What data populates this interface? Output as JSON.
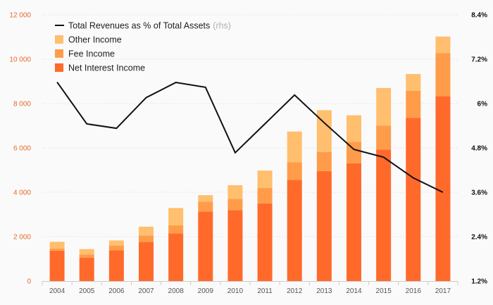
{
  "chart_data": {
    "type": "bar",
    "stacked": true,
    "title": "",
    "xlabel": "",
    "ylabel": "",
    "categories": [
      "2004",
      "2005",
      "2006",
      "2007",
      "2008",
      "2009",
      "2010",
      "2011",
      "2012",
      "2013",
      "2014",
      "2015",
      "2016",
      "2017"
    ],
    "ylim": [
      0,
      12000
    ],
    "y_ticks": [
      0,
      2000,
      4000,
      6000,
      8000,
      10000,
      12000
    ],
    "y_tick_labels": [
      "0",
      "2 000",
      "4 000",
      "6 000",
      "8 000",
      "10 000",
      "12 000"
    ],
    "y2lim": [
      1.2,
      8.4
    ],
    "y2_ticks": [
      1.2,
      2.4,
      3.6,
      4.8,
      6,
      7.2,
      8.4
    ],
    "y2_tick_labels": [
      "1.2%",
      "2.4%",
      "3.6%",
      "4.8%",
      "6%",
      "7.2%",
      "8.4%"
    ],
    "series": [
      {
        "name": "Net Interest Income",
        "type": "bar",
        "color": "#ff6a2b",
        "values": [
          1370,
          1050,
          1390,
          1760,
          2150,
          3130,
          3200,
          3500,
          4560,
          4960,
          5310,
          5930,
          7360,
          8330
        ]
      },
      {
        "name": "Fee Income",
        "type": "bar",
        "color": "#ff9c4a",
        "values": [
          90,
          150,
          210,
          290,
          360,
          440,
          500,
          700,
          800,
          860,
          960,
          1070,
          1220,
          1940
        ]
      },
      {
        "name": "Other Income",
        "type": "bar",
        "color": "#ffbf6e",
        "values": [
          310,
          240,
          230,
          400,
          780,
          300,
          620,
          780,
          1380,
          1880,
          1200,
          1700,
          750,
          750
        ]
      },
      {
        "name": "Total Revenues as % of Total Assets",
        "type": "line",
        "axis": "right",
        "color": "#111111",
        "values": [
          6.58,
          5.45,
          5.33,
          6.16,
          6.57,
          6.44,
          4.67,
          5.45,
          6.23,
          5.48,
          4.76,
          4.55,
          3.99,
          3.6
        ]
      }
    ],
    "legend": {
      "placement": "top-left",
      "entries": [
        {
          "label": "Total Revenues as % of Total Assets",
          "suffix": "(rhs)",
          "swatch": "line",
          "color": "#111111"
        },
        {
          "label": "Other Income",
          "swatch": "box",
          "color": "#ffbf6e"
        },
        {
          "label": "Fee Income",
          "swatch": "box",
          "color": "#ff9c4a"
        },
        {
          "label": "Net Interest Income",
          "swatch": "box",
          "color": "#ff6a2b"
        }
      ]
    },
    "grid": true
  }
}
